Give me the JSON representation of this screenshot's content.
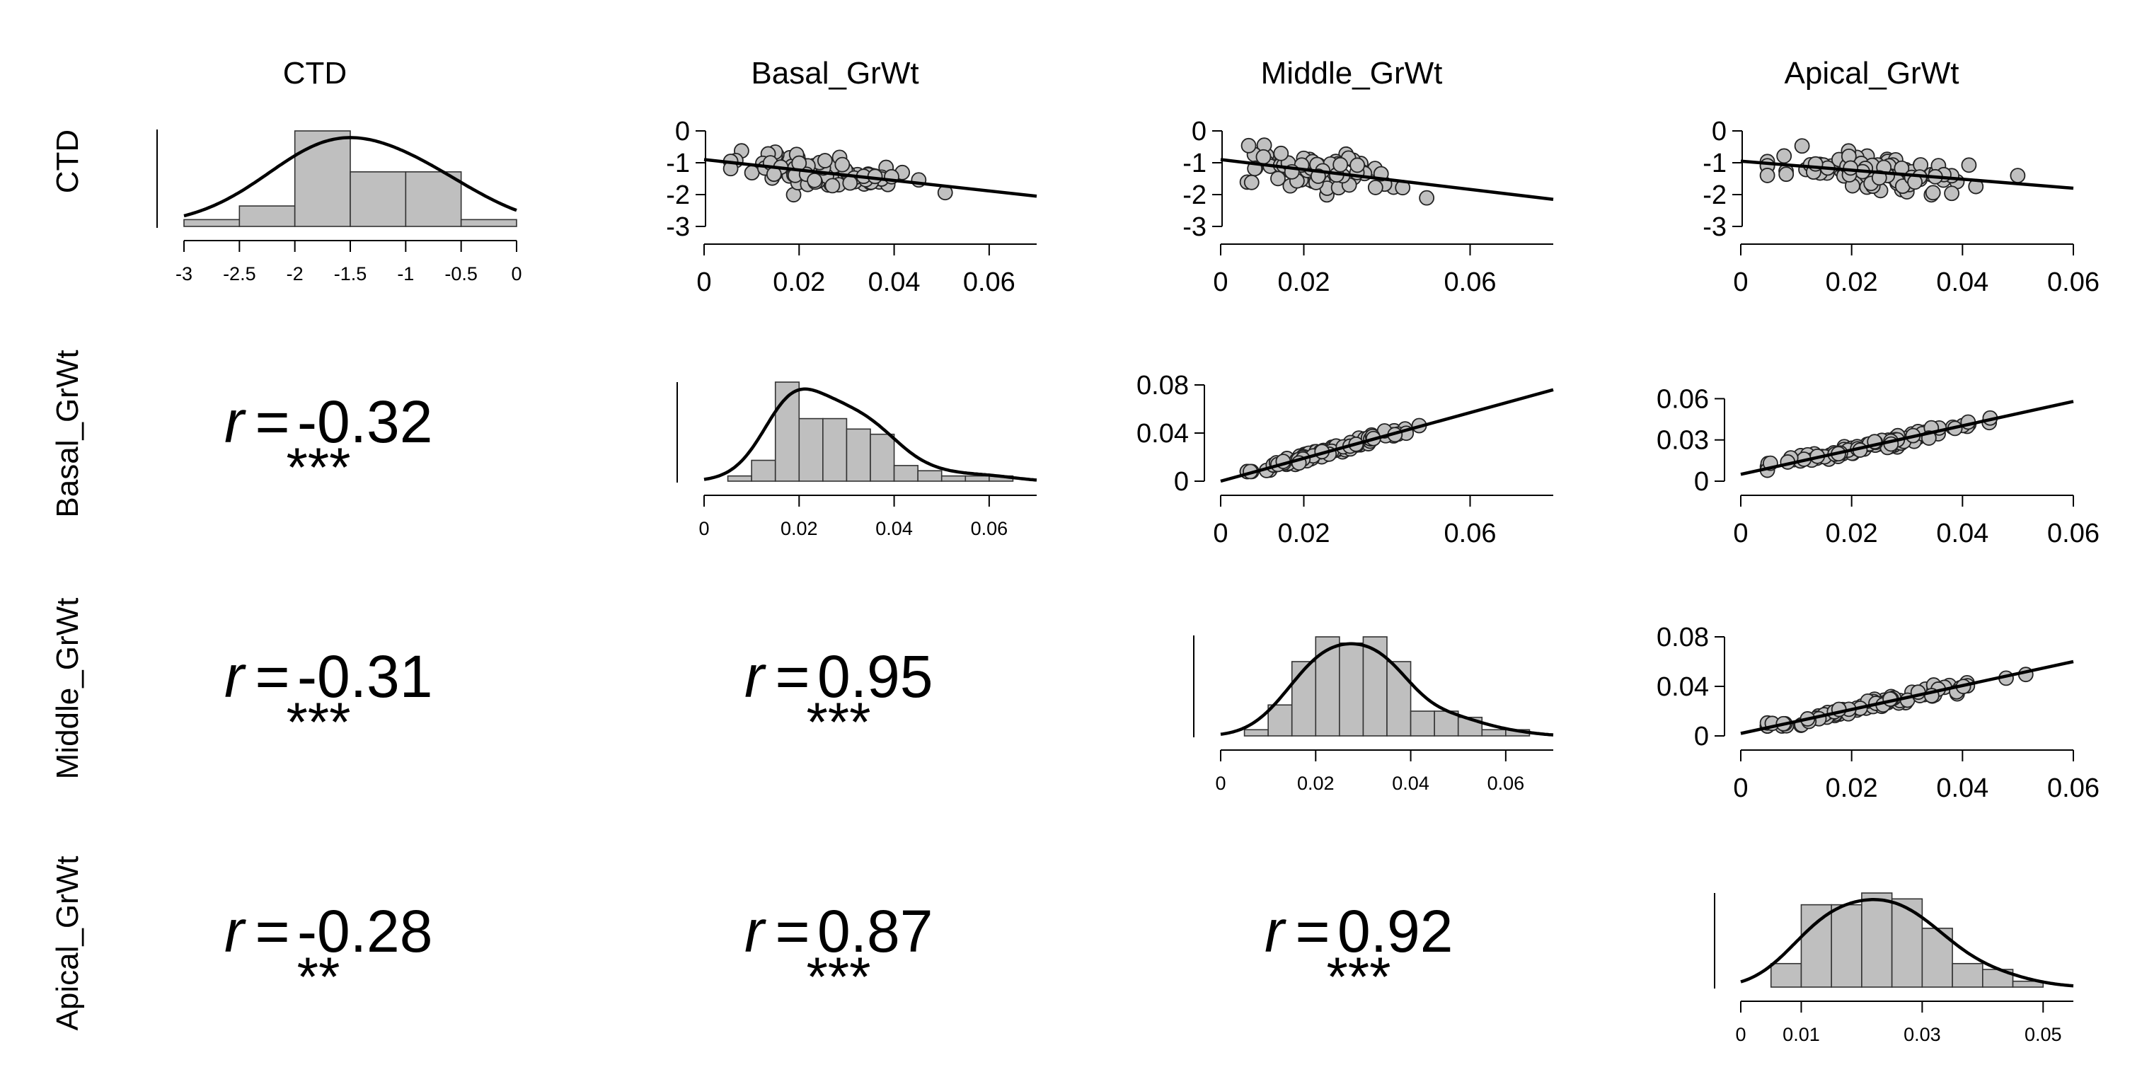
{
  "chart_data": {
    "type": "scatter",
    "variables": [
      "CTD",
      "Basal_GrWt",
      "Middle_GrWt",
      "Apical_GrWt"
    ],
    "diagonal": [
      {
        "variable": "CTD",
        "type": "histogram",
        "bins": [
          -3,
          -2.5,
          -2,
          -1.5,
          -1,
          -0.5,
          0
        ],
        "counts": [
          1,
          3,
          14,
          8,
          8,
          1
        ],
        "density_curve": true,
        "xlim": [
          -3,
          0
        ],
        "x_ticks": [
          "-3",
          "-2.5",
          "-2",
          "-1.5",
          "-1",
          "-0.5",
          "0"
        ]
      },
      {
        "variable": "Basal_GrWt",
        "type": "histogram",
        "bins": [
          0.005,
          0.01,
          0.015,
          0.02,
          0.025,
          0.03,
          0.035,
          0.04,
          0.045,
          0.05,
          0.055,
          0.06,
          0.065
        ],
        "counts": [
          1,
          4,
          19,
          12,
          12,
          10,
          9,
          3,
          2,
          1,
          1,
          1
        ],
        "density_curve": true,
        "xlim": [
          0,
          0.07
        ],
        "x_ticks": [
          "0",
          "0.02",
          "0.04",
          "0.06"
        ]
      },
      {
        "variable": "Middle_GrWt",
        "type": "histogram",
        "bins": [
          0.005,
          0.01,
          0.015,
          0.02,
          0.025,
          0.03,
          0.035,
          0.04,
          0.045,
          0.05,
          0.055,
          0.06,
          0.065
        ],
        "counts": [
          1,
          5,
          12,
          16,
          15,
          16,
          12,
          4,
          4,
          3,
          1,
          1
        ],
        "density_curve": true,
        "xlim": [
          0,
          0.07
        ],
        "x_ticks": [
          "0",
          "0.02",
          "0.04",
          "0.06"
        ]
      },
      {
        "variable": "Apical_GrWt",
        "type": "histogram",
        "bins": [
          0.005,
          0.01,
          0.015,
          0.02,
          0.025,
          0.03,
          0.035,
          0.04,
          0.045,
          0.05
        ],
        "counts": [
          4,
          14,
          14,
          16,
          15,
          10,
          4,
          3,
          1
        ],
        "density_curve": true,
        "xlim": [
          0,
          0.055
        ],
        "x_ticks": [
          "0",
          "0.01",
          "0.03",
          "0.05"
        ]
      }
    ],
    "scatter_panels": [
      {
        "x": "Basal_GrWt",
        "y": "CTD",
        "xlim": [
          0,
          0.07
        ],
        "ylim": [
          -3,
          0
        ],
        "x_ticks": [
          "0",
          "0.02",
          "0.04",
          "0.06"
        ],
        "y_ticks": [
          "0",
          "-1",
          "-2",
          "-3"
        ],
        "fit": [
          [
            0,
            -0.9
          ],
          [
            0.07,
            -2.05
          ]
        ]
      },
      {
        "x": "Middle_GrWt",
        "y": "CTD",
        "xlim": [
          0,
          0.08
        ],
        "ylim": [
          -3,
          0
        ],
        "x_ticks": [
          "0",
          "0.02",
          "0.06"
        ],
        "y_ticks": [
          "0",
          "-1",
          "-2",
          "-3"
        ],
        "fit": [
          [
            0,
            -0.9
          ],
          [
            0.08,
            -2.15
          ]
        ]
      },
      {
        "x": "Apical_GrWt",
        "y": "CTD",
        "xlim": [
          0,
          0.06
        ],
        "ylim": [
          -3,
          0
        ],
        "x_ticks": [
          "0",
          "0.02",
          "0.04",
          "0.06"
        ],
        "y_ticks": [
          "0",
          "-1",
          "-2",
          "-3"
        ],
        "fit": [
          [
            0,
            -0.95
          ],
          [
            0.06,
            -1.8
          ]
        ]
      },
      {
        "x": "Middle_GrWt",
        "y": "Basal_GrWt",
        "xlim": [
          0,
          0.08
        ],
        "ylim": [
          0,
          0.08
        ],
        "x_ticks": [
          "0",
          "0.02",
          "0.06"
        ],
        "y_ticks": [
          "0.08",
          "0.04",
          "0"
        ],
        "fit": [
          [
            0,
            0.0
          ],
          [
            0.08,
            0.076
          ]
        ]
      },
      {
        "x": "Apical_GrWt",
        "y": "Basal_GrWt",
        "xlim": [
          0,
          0.06
        ],
        "ylim": [
          0,
          0.07
        ],
        "x_ticks": [
          "0",
          "0.02",
          "0.04",
          "0.06"
        ],
        "y_ticks": [
          "0.06",
          "0.03",
          "0"
        ],
        "fit": [
          [
            0,
            0.005
          ],
          [
            0.06,
            0.058
          ]
        ]
      },
      {
        "x": "Apical_GrWt",
        "y": "Middle_GrWt",
        "xlim": [
          0,
          0.06
        ],
        "ylim": [
          0,
          0.08
        ],
        "x_ticks": [
          "0",
          "0.02",
          "0.04",
          "0.06"
        ],
        "y_ticks": [
          "0.08",
          "0.04",
          "0"
        ],
        "fit": [
          [
            0,
            0.002
          ],
          [
            0.06,
            0.06
          ]
        ]
      }
    ],
    "correlations": [
      {
        "x": "CTD",
        "y": "Basal_GrWt",
        "r_label": "r",
        "equals": "=",
        "value": "-0.32",
        "stars": "***"
      },
      {
        "x": "CTD",
        "y": "Middle_GrWt",
        "r_label": "r",
        "equals": "=",
        "value": "-0.31",
        "stars": "***"
      },
      {
        "x": "Basal_GrWt",
        "y": "Middle_GrWt",
        "r_label": "r",
        "equals": "=",
        "value": "0.95",
        "stars": "***"
      },
      {
        "x": "CTD",
        "y": "Apical_GrWt",
        "r_label": "r",
        "equals": "=",
        "value": "-0.28",
        "stars": "**"
      },
      {
        "x": "Basal_GrWt",
        "y": "Apical_GrWt",
        "r_label": "r",
        "equals": "=",
        "value": "0.87",
        "stars": "***"
      },
      {
        "x": "Middle_GrWt",
        "y": "Apical_GrWt",
        "r_label": "r",
        "equals": "=",
        "value": "0.92",
        "stars": "***"
      }
    ],
    "colors": {
      "bar_fill": "#bfbfbf",
      "point_fill": "#c0c0c0",
      "line": "#000000"
    }
  }
}
